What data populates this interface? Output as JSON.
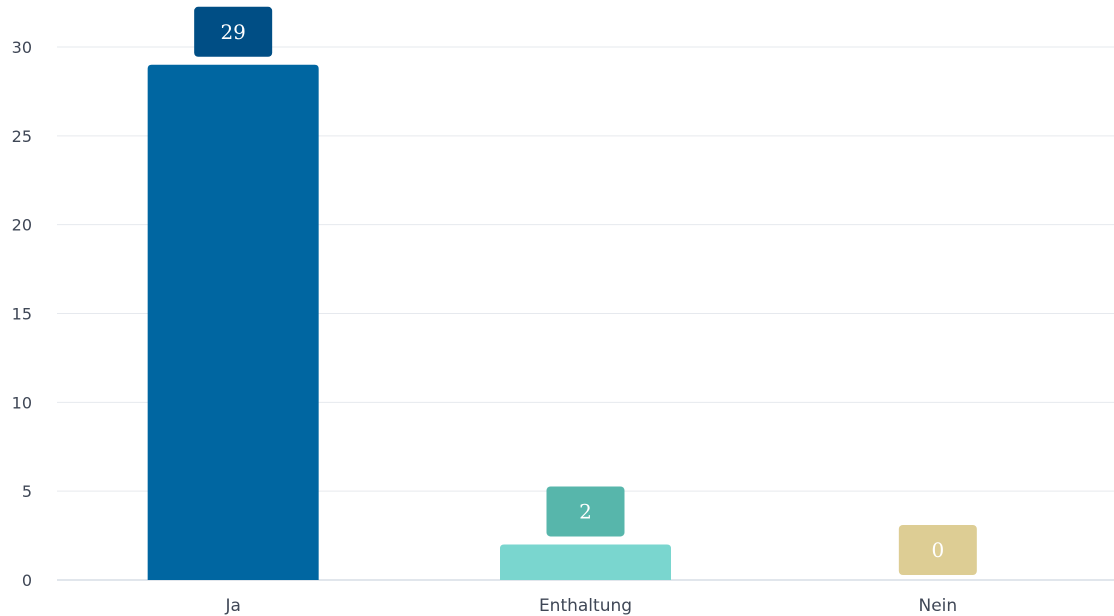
{
  "chart_data": {
    "type": "bar",
    "categories": [
      "Ja",
      "Enthaltung",
      "Nein"
    ],
    "values": [
      29,
      2,
      0
    ],
    "data_labels": [
      "29",
      "2",
      "0"
    ],
    "ylim": [
      0,
      30
    ],
    "yticks": [
      0,
      5,
      10,
      15,
      20,
      25,
      30
    ],
    "ytick_labels": [
      "0",
      "5",
      "10",
      "15",
      "20",
      "25",
      "30"
    ],
    "grid": true,
    "legend": "none",
    "colors": {
      "bars": [
        "#0066A1",
        "#7AD6CF",
        "#E3D196"
      ],
      "labels": [
        "#004E85",
        "#57B6AB",
        "#DDCD94"
      ],
      "grid": "#E6E9EE",
      "axis": "#D7DDE6",
      "tick_text": "#3F4756"
    }
  }
}
